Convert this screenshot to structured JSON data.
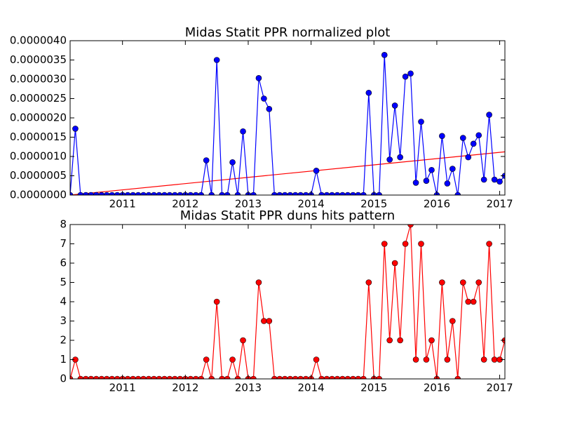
{
  "chart_data": [
    {
      "type": "line",
      "title": "Midas Statit PPR normalized plot",
      "x": [
        2010.167,
        2010.25,
        2010.333,
        2010.417,
        2010.5,
        2010.583,
        2010.667,
        2010.75,
        2010.833,
        2010.917,
        2011.0,
        2011.083,
        2011.167,
        2011.25,
        2011.333,
        2011.417,
        2011.5,
        2011.583,
        2011.667,
        2011.75,
        2011.833,
        2011.917,
        2012.0,
        2012.083,
        2012.167,
        2012.25,
        2012.333,
        2012.417,
        2012.5,
        2012.583,
        2012.667,
        2012.75,
        2012.833,
        2012.917,
        2013.0,
        2013.083,
        2013.167,
        2013.25,
        2013.333,
        2013.417,
        2013.5,
        2013.583,
        2013.667,
        2013.75,
        2013.833,
        2013.917,
        2014.0,
        2014.083,
        2014.167,
        2014.25,
        2014.333,
        2014.417,
        2014.5,
        2014.583,
        2014.667,
        2014.75,
        2014.833,
        2014.917,
        2015.0,
        2015.083,
        2015.167,
        2015.25,
        2015.333,
        2015.417,
        2015.5,
        2015.583,
        2015.667,
        2015.75,
        2015.833,
        2015.917,
        2016.0,
        2016.083,
        2016.167,
        2016.25,
        2016.333,
        2016.417,
        2016.5,
        2016.583,
        2016.667,
        2016.75,
        2016.833,
        2016.917,
        2017.0,
        2017.083
      ],
      "series": [
        {
          "color": "#0000ff",
          "values": [
            0,
            1.72e-06,
            0,
            0,
            0,
            0,
            0,
            0,
            0,
            0,
            0,
            0,
            0,
            0,
            0,
            0,
            0,
            0,
            0,
            0,
            0,
            0,
            0,
            0,
            0,
            0,
            9e-07,
            0,
            3.5e-06,
            0,
            0,
            8.5e-07,
            0,
            1.65e-06,
            0,
            0,
            3.03e-06,
            2.5e-06,
            2.23e-06,
            0,
            0,
            0,
            0,
            0,
            0,
            0,
            0,
            6.3e-07,
            0,
            0,
            0,
            0,
            0,
            0,
            0,
            0,
            0,
            2.65e-06,
            0,
            0,
            3.63e-06,
            9.2e-07,
            2.32e-06,
            9.8e-07,
            3.07e-06,
            3.15e-06,
            3.2e-07,
            1.9e-06,
            3.7e-07,
            6.5e-07,
            0,
            1.53e-06,
            3e-07,
            6.8e-07,
            0,
            1.48e-06,
            9.8e-07,
            1.33e-06,
            1.55e-06,
            4e-07,
            2.08e-06,
            4e-07,
            3.5e-07,
            5e-07
          ]
        }
      ],
      "trend": {
        "color": "#ff0000",
        "x": [
          2010.167,
          2017.083
        ],
        "values": [
          0,
          1.12e-06
        ]
      },
      "xlim": [
        2010.167,
        2017.083
      ],
      "xticks": [
        2011,
        2012,
        2013,
        2014,
        2015,
        2016,
        2017
      ],
      "ylim": [
        0,
        4e-06
      ],
      "yticks": [
        {
          "value": 0,
          "label": "0.0000000"
        },
        {
          "value": 5e-07,
          "label": "0.0000005"
        },
        {
          "value": 1e-06,
          "label": "0.0000010"
        },
        {
          "value": 1.5e-06,
          "label": "0.0000015"
        },
        {
          "value": 2e-06,
          "label": "0.0000020"
        },
        {
          "value": 2.5e-06,
          "label": "0.0000025"
        },
        {
          "value": 3e-06,
          "label": "0.0000030"
        },
        {
          "value": 3.5e-06,
          "label": "0.0000035"
        },
        {
          "value": 4e-06,
          "label": "0.0000040"
        }
      ]
    },
    {
      "type": "line",
      "title": "Midas Statit PPR duns hits pattern",
      "x": [
        2010.167,
        2010.25,
        2010.333,
        2010.417,
        2010.5,
        2010.583,
        2010.667,
        2010.75,
        2010.833,
        2010.917,
        2011.0,
        2011.083,
        2011.167,
        2011.25,
        2011.333,
        2011.417,
        2011.5,
        2011.583,
        2011.667,
        2011.75,
        2011.833,
        2011.917,
        2012.0,
        2012.083,
        2012.167,
        2012.25,
        2012.333,
        2012.417,
        2012.5,
        2012.583,
        2012.667,
        2012.75,
        2012.833,
        2012.917,
        2013.0,
        2013.083,
        2013.167,
        2013.25,
        2013.333,
        2013.417,
        2013.5,
        2013.583,
        2013.667,
        2013.75,
        2013.833,
        2013.917,
        2014.0,
        2014.083,
        2014.167,
        2014.25,
        2014.333,
        2014.417,
        2014.5,
        2014.583,
        2014.667,
        2014.75,
        2014.833,
        2014.917,
        2015.0,
        2015.083,
        2015.167,
        2015.25,
        2015.333,
        2015.417,
        2015.5,
        2015.583,
        2015.667,
        2015.75,
        2015.833,
        2015.917,
        2016.0,
        2016.083,
        2016.167,
        2016.25,
        2016.333,
        2016.417,
        2016.5,
        2016.583,
        2016.667,
        2016.75,
        2016.833,
        2016.917,
        2017.0,
        2017.083
      ],
      "series": [
        {
          "color": "#ff0000",
          "values": [
            0,
            1,
            0,
            0,
            0,
            0,
            0,
            0,
            0,
            0,
            0,
            0,
            0,
            0,
            0,
            0,
            0,
            0,
            0,
            0,
            0,
            0,
            0,
            0,
            0,
            0,
            1,
            0,
            4,
            0,
            0,
            1,
            0,
            2,
            0,
            0,
            5,
            3,
            3,
            0,
            0,
            0,
            0,
            0,
            0,
            0,
            0,
            1,
            0,
            0,
            0,
            0,
            0,
            0,
            0,
            0,
            0,
            5,
            0,
            0,
            7,
            2,
            6,
            2,
            7,
            8,
            1,
            7,
            1,
            2,
            0,
            5,
            1,
            3,
            0,
            5,
            4,
            4,
            5,
            1,
            7,
            1,
            1,
            2
          ]
        }
      ],
      "xlim": [
        2010.167,
        2017.083
      ],
      "xticks": [
        2011,
        2012,
        2013,
        2014,
        2015,
        2016,
        2017
      ],
      "ylim": [
        0,
        8
      ],
      "yticks": [
        0,
        1,
        2,
        3,
        4,
        5,
        6,
        7,
        8
      ]
    }
  ]
}
